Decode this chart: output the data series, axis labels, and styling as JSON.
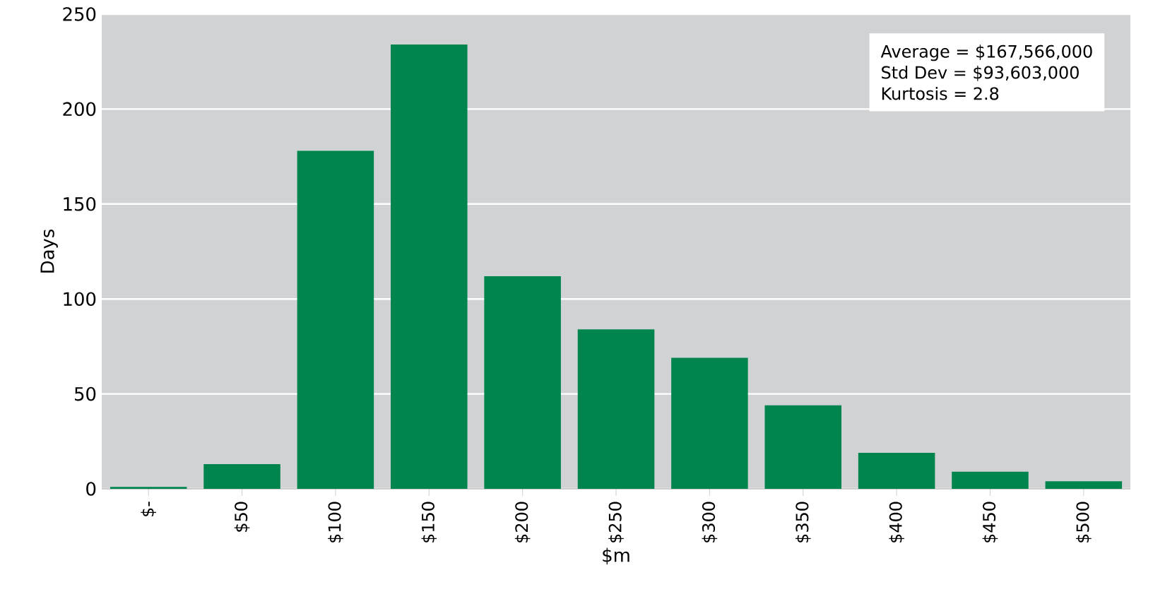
{
  "chart_data": {
    "type": "bar",
    "xlabel": "$m",
    "ylabel": "Days",
    "categories": [
      "$-",
      "$50",
      "$100",
      "$150",
      "$200",
      "$250",
      "$300",
      "$350",
      "$400",
      "$450",
      "$500"
    ],
    "values": [
      1,
      13,
      178,
      234,
      112,
      84,
      69,
      44,
      19,
      9,
      4
    ],
    "color": "#00854f",
    "ylim": [
      0,
      250
    ],
    "yticks": [
      0,
      50,
      100,
      150,
      200,
      250
    ],
    "grid": "y",
    "annotations": [
      "Average = $167,566,000",
      "Std Dev = $93,603,000",
      "Kurtosis = 2.8"
    ]
  }
}
